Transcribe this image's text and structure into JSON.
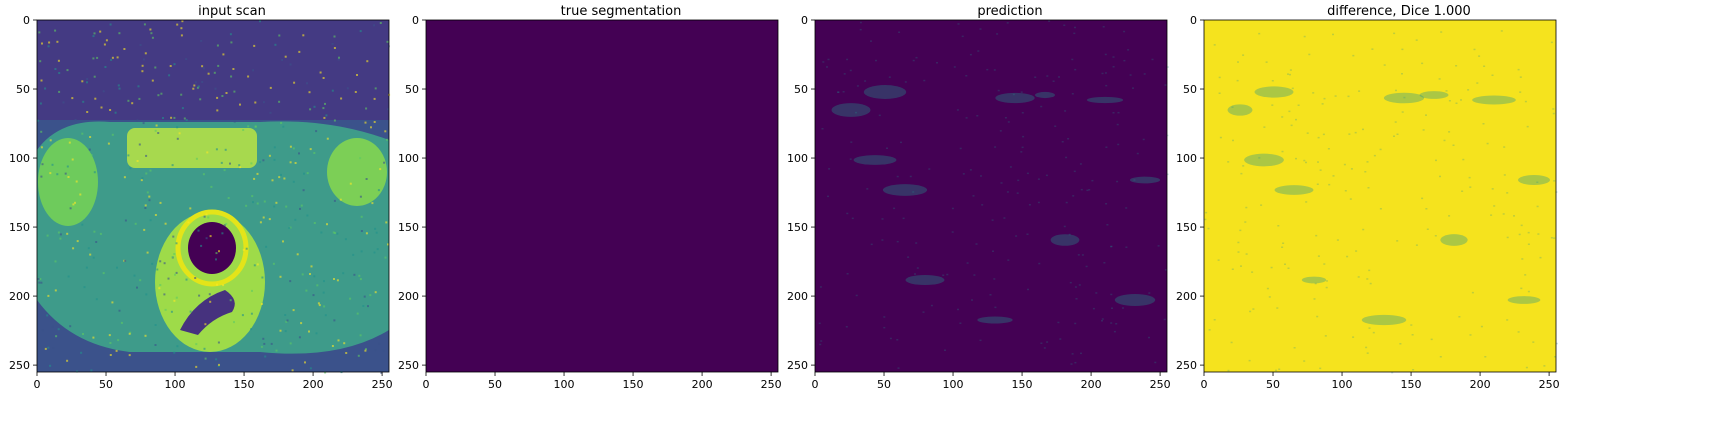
{
  "figure": {
    "panels": [
      {
        "id": "input",
        "title": "input scan",
        "colormap": "viridis",
        "content": "mri-scan"
      },
      {
        "id": "truth",
        "title": "true segmentation",
        "colormap": "viridis",
        "content": "uniform-low"
      },
      {
        "id": "pred",
        "title": "prediction",
        "colormap": "viridis",
        "content": "faint-noise-low"
      },
      {
        "id": "diff",
        "title": "difference, Dice 1.000",
        "colormap": "viridis",
        "content": "faint-noise-high"
      }
    ]
  },
  "chart_data": [
    {
      "type": "heatmap",
      "title": "input scan",
      "xlim": [
        0,
        255
      ],
      "ylim": [
        255,
        0
      ],
      "xticks": [
        "0",
        "50",
        "100",
        "150",
        "200",
        "250"
      ],
      "yticks": [
        "0",
        "50",
        "100",
        "150",
        "200",
        "250"
      ],
      "image_size": [
        256,
        256
      ],
      "colormap": "viridis"
    },
    {
      "type": "heatmap",
      "title": "true segmentation",
      "xlim": [
        0,
        255
      ],
      "ylim": [
        255,
        0
      ],
      "xticks": [
        "0",
        "50",
        "100",
        "150",
        "200",
        "250"
      ],
      "yticks": [
        "0",
        "50",
        "100",
        "150",
        "200",
        "250"
      ],
      "image_size": [
        256,
        256
      ],
      "colormap": "viridis",
      "uniform_value": 0
    },
    {
      "type": "heatmap",
      "title": "prediction",
      "xlim": [
        0,
        255
      ],
      "ylim": [
        255,
        0
      ],
      "xticks": [
        "0",
        "50",
        "100",
        "150",
        "200",
        "250"
      ],
      "yticks": [
        "0",
        "50",
        "100",
        "150",
        "200",
        "250"
      ],
      "image_size": [
        256,
        256
      ],
      "colormap": "viridis"
    },
    {
      "type": "heatmap",
      "title": "difference, Dice 1.000",
      "xlim": [
        0,
        255
      ],
      "ylim": [
        255,
        0
      ],
      "xticks": [
        "0",
        "50",
        "100",
        "150",
        "200",
        "250"
      ],
      "yticks": [
        "0",
        "50",
        "100",
        "150",
        "200",
        "250"
      ],
      "image_size": [
        256,
        256
      ],
      "colormap": "viridis"
    }
  ],
  "colors": {
    "viridis_low": "#440154",
    "viridis_mid": "#21918c",
    "viridis_bright": "#5ec962",
    "viridis_high": "#fde725",
    "axis": "#000000",
    "background": "#ffffff"
  }
}
